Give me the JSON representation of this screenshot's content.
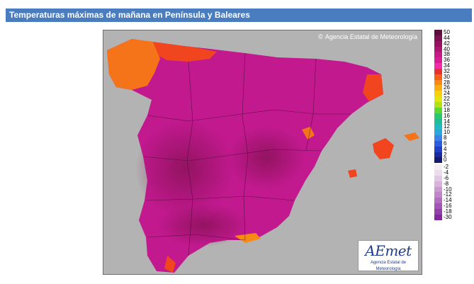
{
  "header": {
    "title": "Temperaturas máximas de mañana en Península y Baleares"
  },
  "map": {
    "credit_symbol": "©",
    "credit": "Agencia Estatal de Meteorología",
    "background_color": "#b3b3b3",
    "dominant_color": "#c2198f",
    "logo": {
      "mark": "AEmet",
      "subtitle": "Agencia Estatal de Meteorología"
    }
  },
  "legend": {
    "warm": [
      {
        "label": "50",
        "color": "#5c0f3a"
      },
      {
        "label": "44",
        "color": "#7a1250"
      },
      {
        "label": "42",
        "color": "#951260"
      },
      {
        "label": "40",
        "color": "#ad1670"
      },
      {
        "label": "38",
        "color": "#c41b86"
      },
      {
        "label": "36",
        "color": "#d91c96"
      },
      {
        "label": "34",
        "color": "#f22ca8"
      },
      {
        "label": "32",
        "color": "#e8312a"
      },
      {
        "label": "30",
        "color": "#f55f18"
      },
      {
        "label": "28",
        "color": "#f88a14"
      },
      {
        "label": "26",
        "color": "#fbac10"
      },
      {
        "label": "24",
        "color": "#f7cf0c"
      },
      {
        "label": "22",
        "color": "#e3e40e"
      },
      {
        "label": "20",
        "color": "#b2e012"
      },
      {
        "label": "18",
        "color": "#5fd72d"
      },
      {
        "label": "16",
        "color": "#2cc86a"
      },
      {
        "label": "14",
        "color": "#1fbd96"
      },
      {
        "label": "12",
        "color": "#21b8c4"
      },
      {
        "label": "10",
        "color": "#2da6e0"
      },
      {
        "label": "8",
        "color": "#3a82ea"
      },
      {
        "label": "6",
        "color": "#2d5ce0"
      },
      {
        "label": "4",
        "color": "#2140c4"
      },
      {
        "label": "2",
        "color": "#1a2aa0"
      },
      {
        "label": "0",
        "color": "#141a70"
      }
    ],
    "cold": [
      {
        "label": "-2",
        "color": "#f4eef4"
      },
      {
        "label": "-4",
        "color": "#ecdcec"
      },
      {
        "label": "-6",
        "color": "#e2c8e4"
      },
      {
        "label": "-8",
        "color": "#d8b2dc"
      },
      {
        "label": "-10",
        "color": "#cc9ad2"
      },
      {
        "label": "-12",
        "color": "#c084c8"
      },
      {
        "label": "-14",
        "color": "#b36dc0"
      },
      {
        "label": "-16",
        "color": "#a456b6"
      },
      {
        "label": "-18",
        "color": "#9440aa"
      },
      {
        "label": "-30",
        "color": "#82289c"
      }
    ]
  }
}
